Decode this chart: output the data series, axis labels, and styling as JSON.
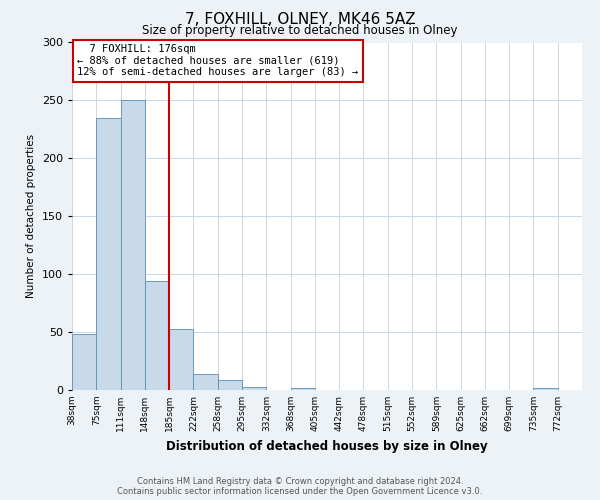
{
  "title": "7, FOXHILL, OLNEY, MK46 5AZ",
  "subtitle": "Size of property relative to detached houses in Olney",
  "xlabel": "Distribution of detached houses by size in Olney",
  "ylabel": "Number of detached properties",
  "bins": [
    "38sqm",
    "75sqm",
    "111sqm",
    "148sqm",
    "185sqm",
    "222sqm",
    "258sqm",
    "295sqm",
    "332sqm",
    "368sqm",
    "405sqm",
    "442sqm",
    "478sqm",
    "515sqm",
    "552sqm",
    "589sqm",
    "625sqm",
    "662sqm",
    "699sqm",
    "735sqm",
    "772sqm"
  ],
  "values": [
    48,
    235,
    250,
    94,
    53,
    14,
    9,
    3,
    0,
    2,
    0,
    0,
    0,
    0,
    0,
    0,
    0,
    0,
    0,
    2,
    0
  ],
  "bar_color": "#c8d9ea",
  "bar_edge_color": "#5b8db8",
  "vline_x": 4,
  "vline_color": "#cc0000",
  "ylim": [
    0,
    300
  ],
  "yticks": [
    0,
    50,
    100,
    150,
    200,
    250,
    300
  ],
  "annotation_title": "7 FOXHILL: 176sqm",
  "annotation_line1": "← 88% of detached houses are smaller (619)",
  "annotation_line2": "12% of semi-detached houses are larger (83) →",
  "annotation_box_color": "#cc0000",
  "footer1": "Contains HM Land Registry data © Crown copyright and database right 2024.",
  "footer2": "Contains public sector information licensed under the Open Government Licence v3.0.",
  "background_color": "#edf2f7",
  "plot_background": "#ffffff",
  "grid_color": "#c8d8e8"
}
